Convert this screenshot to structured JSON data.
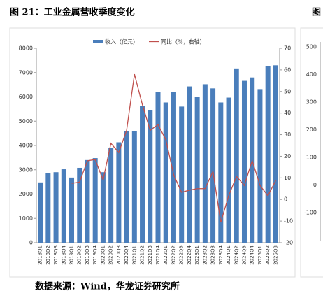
{
  "header": {
    "title": "图 21：工业金属营收季度变化"
  },
  "chart_data": {
    "type": "bar",
    "categories": [
      "2018Q1",
      "2018Q2",
      "2018Q3",
      "2018Q4",
      "2019Q1",
      "2019Q2",
      "2019Q3",
      "2019Q4",
      "2020Q1",
      "2020Q2",
      "2020Q3",
      "2020Q4",
      "2021Q1",
      "2021Q2",
      "2021Q3",
      "2021Q4",
      "2022Q1",
      "2022Q2",
      "2022Q3",
      "2022Q4",
      "2023Q1",
      "2023Q2",
      "2023Q3",
      "2023Q4",
      "2024Q1",
      "2024Q2",
      "2024Q3",
      "2024Q4",
      "2025Q1",
      "2025Q2",
      "2025Q3"
    ],
    "series": [
      {
        "name": "收入（亿元）",
        "color": "#4a7ebb",
        "type": "bar",
        "values": [
          2480,
          2870,
          2900,
          3020,
          2680,
          3080,
          3400,
          3480,
          2900,
          3900,
          4130,
          4580,
          4600,
          5620,
          5450,
          6200,
          5770,
          6200,
          5600,
          6430,
          6000,
          6520,
          6350,
          5770,
          5970,
          7170,
          6660,
          6800,
          6320,
          7270,
          7300
        ]
      },
      {
        "name": "同比（%，右轴）",
        "color": "#c0504d",
        "type": "line",
        "axis": "y2",
        "values": [
          null,
          null,
          null,
          null,
          7.5,
          8,
          17.9,
          18.5,
          9,
          26,
          21.7,
          32,
          58,
          44,
          32,
          34.7,
          27.6,
          11.4,
          3.3,
          4.3,
          5,
          5,
          13,
          -10.6,
          1.7,
          10.7,
          6.5,
          18,
          6.5,
          1.7,
          8.8
        ]
      }
    ],
    "ylim": [
      0,
      8000
    ],
    "yticks": [
      0,
      1000,
      2000,
      3000,
      4000,
      5000,
      6000,
      7000,
      8000
    ],
    "y2lim": [
      -20,
      70
    ],
    "y2ticks": [
      -20,
      -10,
      0,
      10,
      20,
      30,
      40,
      50,
      60,
      70
    ],
    "legend": "top"
  },
  "neighbor": {
    "title": "图",
    "yticks": [
      500,
      400,
      300,
      200,
      100,
      0,
      -100
    ]
  },
  "footer": {
    "source": "数据来源：Wind，华龙证券研究所"
  }
}
